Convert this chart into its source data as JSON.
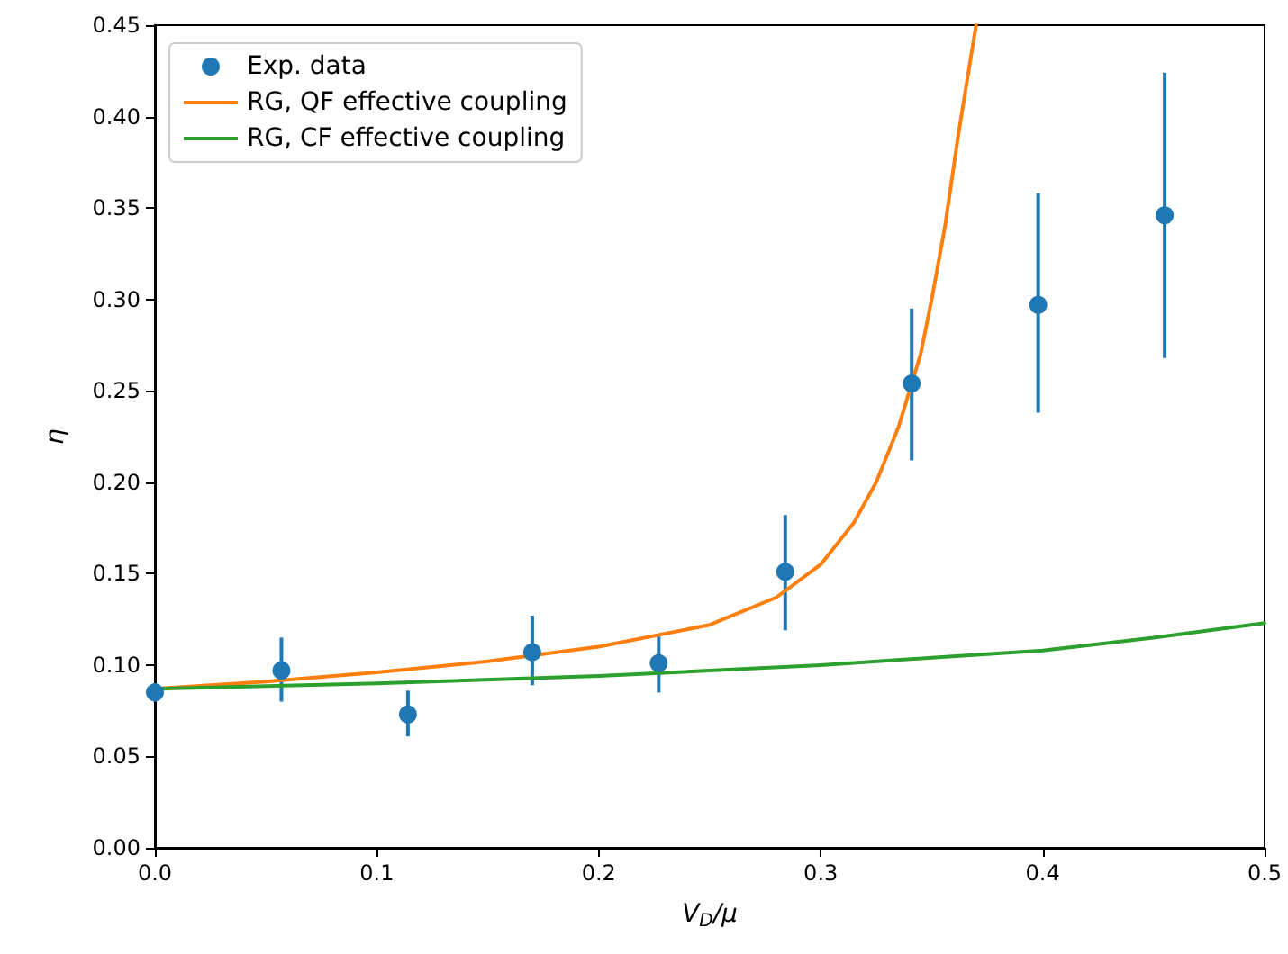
{
  "chart_data": {
    "type": "scatter",
    "xlabel": "V$_{D}$/μ",
    "ylabel": "η",
    "xlim": [
      0,
      0.5
    ],
    "ylim": [
      0,
      0.45
    ],
    "xticks": [
      {
        "value": 0,
        "label": "0.0"
      },
      {
        "value": 0.1,
        "label": "0.1"
      },
      {
        "value": 0.2,
        "label": "0.2"
      },
      {
        "value": 0.3,
        "label": "0.3"
      },
      {
        "value": 0.4,
        "label": "0.4"
      },
      {
        "value": 0.5,
        "label": "0.5"
      }
    ],
    "yticks": [
      {
        "value": 0,
        "label": "0.00"
      },
      {
        "value": 0.05,
        "label": "0.05"
      },
      {
        "value": 0.1,
        "label": "0.10"
      },
      {
        "value": 0.15,
        "label": "0.15"
      },
      {
        "value": 0.2,
        "label": "0.20"
      },
      {
        "value": 0.25,
        "label": "0.25"
      },
      {
        "value": 0.3,
        "label": "0.30"
      },
      {
        "value": 0.35,
        "label": "0.35"
      },
      {
        "value": 0.4,
        "label": "0.40"
      },
      {
        "value": 0.45,
        "label": "0.45"
      }
    ],
    "grid": false,
    "legend": "top left",
    "marker": "circle",
    "series": [
      {
        "name": "Exp. data",
        "type": "scatter",
        "color": "#1f77b4",
        "x": [
          0,
          0.057,
          0.114,
          0.17,
          0.227,
          0.284,
          0.341,
          0.398,
          0.455
        ],
        "values": [
          0.085,
          0.097,
          0.073,
          0.107,
          0.101,
          0.151,
          0.254,
          0.297,
          0.346
        ],
        "errors": [
          [
            0.08,
            0.09
          ],
          [
            0.08,
            0.115
          ],
          [
            0.061,
            0.086
          ],
          [
            0.089,
            0.127
          ],
          [
            0.085,
            0.117
          ],
          [
            0.119,
            0.182
          ],
          [
            0.212,
            0.295
          ],
          [
            0.238,
            0.358
          ],
          [
            0.268,
            0.424
          ]
        ]
      },
      {
        "name": "RG, QF effective coupling",
        "type": "line",
        "color": "#ff7f0e",
        "marker": "none",
        "x": [
          0,
          0.05,
          0.1,
          0.15,
          0.2,
          0.25,
          0.28,
          0.3,
          0.315,
          0.325,
          0.335,
          0.34,
          0.345,
          0.35,
          0.356,
          0.362,
          0.366,
          0.37
        ],
        "values": [
          0.087,
          0.091,
          0.096,
          0.102,
          0.11,
          0.122,
          0.137,
          0.155,
          0.178,
          0.2,
          0.23,
          0.25,
          0.27,
          0.3,
          0.34,
          0.39,
          0.42,
          0.45
        ]
      },
      {
        "name": "RG, CF effective coupling",
        "type": "line",
        "color": "#2ca02c",
        "marker": "none",
        "x": [
          0,
          0.1,
          0.2,
          0.3,
          0.35,
          0.4,
          0.45,
          0.5
        ],
        "values": [
          0.087,
          0.09,
          0.094,
          0.1,
          0.104,
          0.108,
          0.115,
          0.123
        ]
      }
    ]
  }
}
